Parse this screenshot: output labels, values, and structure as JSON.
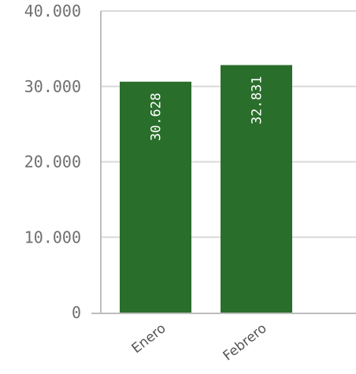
{
  "chart_data": {
    "type": "bar",
    "categories": [
      "Enero",
      "Febrero"
    ],
    "values": [
      30628,
      32831
    ],
    "value_labels": [
      "30.628",
      "32.831"
    ],
    "ylim": [
      0,
      40000
    ],
    "yticks": [
      0,
      10000,
      20000,
      30000,
      40000
    ],
    "ytick_labels": [
      "0",
      "10.000",
      "20.000",
      "30.000",
      "40.000"
    ],
    "grid": true,
    "bar_color": "#2a6e2c",
    "grid_color": "#d9d9d9",
    "axis_color": "#bdbdbd"
  }
}
